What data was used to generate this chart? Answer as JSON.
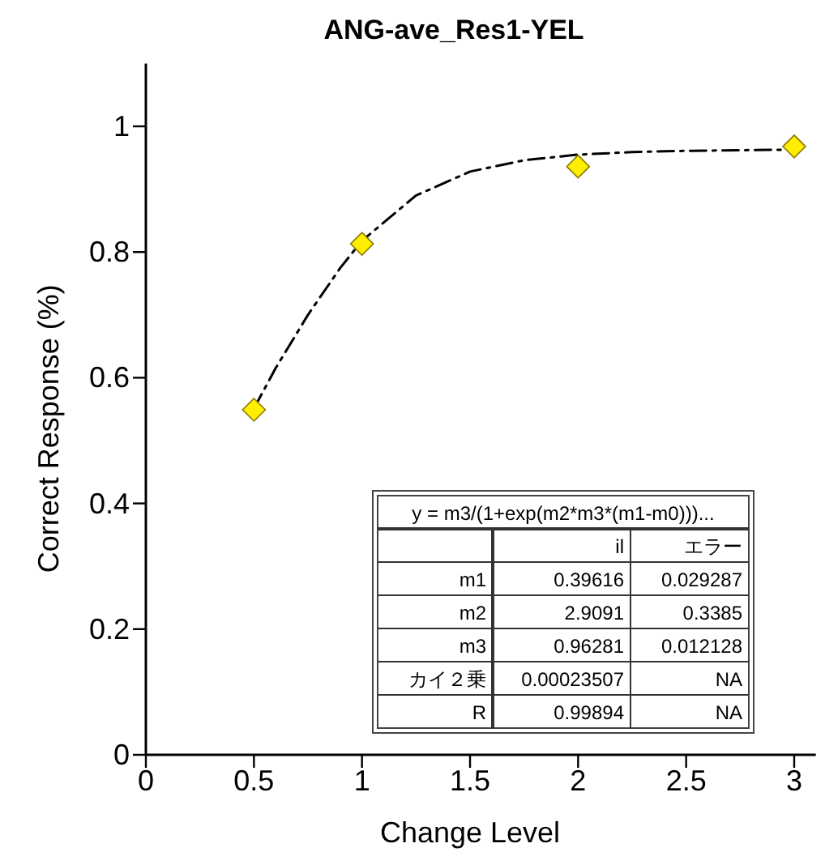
{
  "chart_data": {
    "type": "scatter",
    "title": "ANG-ave_Res1-YEL",
    "xlabel": "Change Level",
    "ylabel": "Correct Response (%)",
    "xlim": [
      0,
      3.1
    ],
    "ylim": [
      0,
      1.1
    ],
    "xticks": [
      0,
      0.5,
      1,
      1.5,
      2,
      2.5,
      3
    ],
    "yticks": [
      0,
      0.2,
      0.4,
      0.6,
      0.8,
      1
    ],
    "grid": false,
    "series": [
      {
        "color": "#ffee00",
        "marker": "diamond",
        "x": [
          0.5,
          1,
          2,
          3
        ],
        "values": [
          0.549,
          0.813,
          0.936,
          0.968
        ]
      },
      {
        "type": "line",
        "color": "#000000",
        "marker": "none",
        "line_style": "dashed",
        "x": [
          0.5,
          0.6,
          0.75,
          0.9,
          1,
          1.25,
          1.5,
          1.75,
          2,
          2.25,
          2.5,
          2.75,
          3
        ],
        "values": [
          0.551,
          0.615,
          0.7,
          0.775,
          0.818,
          0.89,
          0.928,
          0.946,
          0.955,
          0.959,
          0.961,
          0.962,
          0.963
        ]
      }
    ],
    "annotations": [
      "y = m3/(1+exp(m2*m3*(m1-m0)))...",
      "il",
      "エラー",
      "m1",
      "0.39616",
      "0.029287",
      "m2",
      "2.9091",
      "0.3385",
      "m3",
      "0.96281",
      "0.012128",
      "カイ２乗",
      "0.00023507",
      "NA",
      "R",
      "0.99894",
      "NA"
    ]
  }
}
